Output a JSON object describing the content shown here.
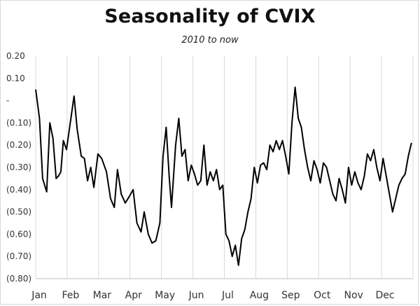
{
  "chart_data": {
    "type": "line",
    "title": "Seasonality of CVIX",
    "subtitle": "2010 to now",
    "xlabel": "",
    "ylabel": "",
    "ylim": [
      -0.8,
      0.2
    ],
    "y_ticks": [
      0.2,
      0.1,
      0.0,
      -0.1,
      -0.2,
      -0.3,
      -0.4,
      -0.5,
      -0.6,
      -0.7,
      -0.8
    ],
    "y_tick_labels": [
      "0.20",
      "0.10",
      "-",
      "(0.10)",
      "(0.20)",
      "(0.30)",
      "(0.40)",
      "(0.50)",
      "(0.60)",
      "(0.70)",
      "(0.80)"
    ],
    "categories": [
      "Jan",
      "Feb",
      "Mar",
      "Apr",
      "May",
      "Jun",
      "Jul",
      "Aug",
      "Sep",
      "Oct",
      "Nov",
      "Dec"
    ],
    "grid": "vertical",
    "line_color": "#000000",
    "series": [
      {
        "x": [
          0.0,
          0.12,
          0.22,
          0.35,
          0.45,
          0.55,
          0.65,
          0.72,
          0.8,
          0.88,
          0.98,
          1.1,
          1.22,
          1.32,
          1.45,
          1.55,
          1.65,
          1.75,
          1.85,
          1.98,
          2.1,
          2.25,
          2.38,
          2.5,
          2.6,
          2.72,
          2.85,
          2.98,
          3.1,
          3.22,
          3.35,
          3.45,
          3.58,
          3.7,
          3.82,
          3.95,
          4.05,
          4.15,
          4.25,
          4.32,
          4.45,
          4.55,
          4.65,
          4.75,
          4.85,
          4.95,
          5.05,
          5.15,
          5.25,
          5.35,
          5.45,
          5.55,
          5.65,
          5.75,
          5.85,
          5.95,
          6.05,
          6.15,
          6.25,
          6.35,
          6.45,
          6.55,
          6.65,
          6.75,
          6.85,
          6.95,
          7.05,
          7.15,
          7.25,
          7.35,
          7.45,
          7.55,
          7.65,
          7.75,
          7.85,
          7.95,
          8.05,
          8.15,
          8.25,
          8.35,
          8.45,
          8.55,
          8.65,
          8.75,
          8.85,
          8.95,
          9.05,
          9.15,
          9.25,
          9.35,
          9.45,
          9.55,
          9.65,
          9.75,
          9.85,
          9.95,
          10.05,
          10.15,
          10.25,
          10.35,
          10.45,
          10.55,
          10.65,
          10.75,
          10.85,
          10.95,
          11.05,
          11.15,
          11.25,
          11.35,
          11.45,
          11.55,
          11.65,
          11.75,
          11.85,
          11.95
        ],
        "values": [
          0.05,
          -0.08,
          -0.35,
          -0.41,
          -0.1,
          -0.17,
          -0.35,
          -0.34,
          -0.32,
          -0.18,
          -0.22,
          -0.1,
          0.02,
          -0.13,
          -0.25,
          -0.26,
          -0.36,
          -0.3,
          -0.39,
          -0.24,
          -0.26,
          -0.32,
          -0.44,
          -0.48,
          -0.31,
          -0.42,
          -0.46,
          -0.43,
          -0.4,
          -0.55,
          -0.59,
          -0.5,
          -0.6,
          -0.64,
          -0.63,
          -0.55,
          -0.25,
          -0.12,
          -0.35,
          -0.48,
          -0.2,
          -0.08,
          -0.25,
          -0.22,
          -0.36,
          -0.29,
          -0.33,
          -0.38,
          -0.36,
          -0.2,
          -0.38,
          -0.32,
          -0.36,
          -0.31,
          -0.4,
          -0.38,
          -0.6,
          -0.63,
          -0.7,
          -0.65,
          -0.74,
          -0.62,
          -0.58,
          -0.5,
          -0.44,
          -0.3,
          -0.37,
          -0.29,
          -0.28,
          -0.31,
          -0.2,
          -0.23,
          -0.18,
          -0.22,
          -0.18,
          -0.25,
          -0.33,
          -0.1,
          0.06,
          -0.08,
          -0.12,
          -0.22,
          -0.3,
          -0.36,
          -0.27,
          -0.31,
          -0.37,
          -0.28,
          -0.3,
          -0.36,
          -0.42,
          -0.45,
          -0.35,
          -0.4,
          -0.46,
          -0.3,
          -0.38,
          -0.32,
          -0.37,
          -0.4,
          -0.34,
          -0.24,
          -0.27,
          -0.22,
          -0.3,
          -0.36,
          -0.26,
          -0.34,
          -0.42,
          -0.5,
          -0.44,
          -0.38,
          -0.35,
          -0.33,
          -0.25,
          -0.19
        ]
      }
    ]
  }
}
